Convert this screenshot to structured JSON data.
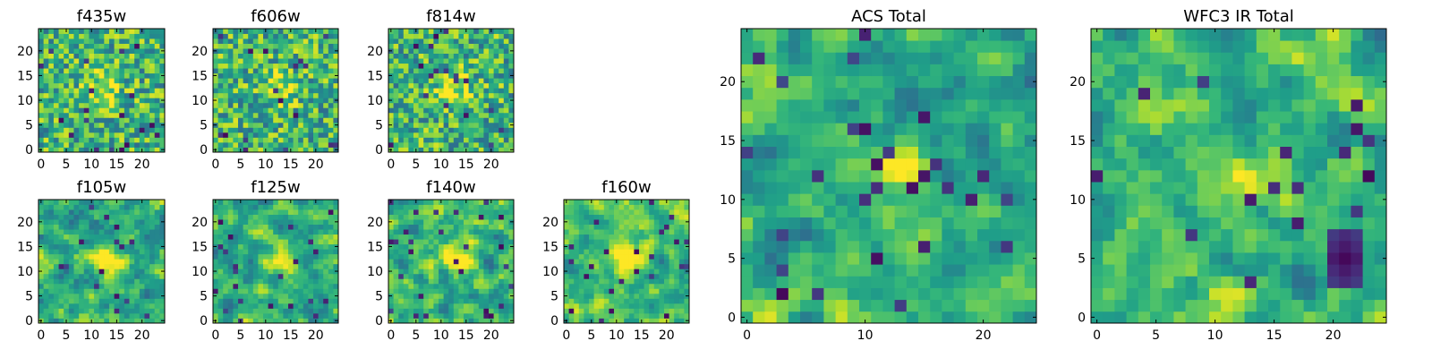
{
  "chart_data": [
    {
      "type": "heatmap",
      "title": "f435w",
      "xticks": [
        0,
        5,
        10,
        15,
        20
      ],
      "yticks": [
        0,
        5,
        10,
        15,
        20
      ],
      "xlim": [
        0,
        24
      ],
      "ylim": [
        0,
        24
      ],
      "grid_size": 25,
      "colormap": "viridis"
    },
    {
      "type": "heatmap",
      "title": "f606w",
      "xticks": [
        0,
        5,
        10,
        15,
        20
      ],
      "yticks": [
        0,
        5,
        10,
        15,
        20
      ],
      "xlim": [
        0,
        24
      ],
      "ylim": [
        0,
        24
      ],
      "grid_size": 25,
      "colormap": "viridis"
    },
    {
      "type": "heatmap",
      "title": "f814w",
      "xticks": [
        0,
        5,
        10,
        15,
        20
      ],
      "yticks": [
        0,
        5,
        10,
        15,
        20
      ],
      "xlim": [
        0,
        24
      ],
      "ylim": [
        0,
        24
      ],
      "grid_size": 25,
      "colormap": "viridis"
    },
    {
      "type": "heatmap",
      "title": "f105w",
      "xticks": [
        0,
        5,
        10,
        15,
        20
      ],
      "yticks": [
        0,
        5,
        10,
        15,
        20
      ],
      "xlim": [
        0,
        24
      ],
      "ylim": [
        0,
        24
      ],
      "grid_size": 25,
      "colormap": "viridis"
    },
    {
      "type": "heatmap",
      "title": "f125w",
      "xticks": [
        0,
        5,
        10,
        15,
        20
      ],
      "yticks": [
        0,
        5,
        10,
        15,
        20
      ],
      "xlim": [
        0,
        24
      ],
      "ylim": [
        0,
        24
      ],
      "grid_size": 25,
      "colormap": "viridis"
    },
    {
      "type": "heatmap",
      "title": "f140w",
      "xticks": [
        0,
        5,
        10,
        15,
        20
      ],
      "yticks": [
        0,
        5,
        10,
        15,
        20
      ],
      "xlim": [
        0,
        24
      ],
      "ylim": [
        0,
        24
      ],
      "grid_size": 25,
      "colormap": "viridis"
    },
    {
      "type": "heatmap",
      "title": "f160w",
      "xticks": [
        0,
        5,
        10,
        15,
        20
      ],
      "yticks": [
        0,
        5,
        10,
        15,
        20
      ],
      "xlim": [
        0,
        24
      ],
      "ylim": [
        0,
        24
      ],
      "grid_size": 25,
      "colormap": "viridis"
    },
    {
      "type": "heatmap",
      "title": "ACS Total",
      "xticks": [
        0,
        10,
        20
      ],
      "yticks": [
        0,
        5,
        10,
        15,
        20
      ],
      "xlim": [
        0,
        24
      ],
      "ylim": [
        0,
        24
      ],
      "grid_size": 25,
      "colormap": "viridis"
    },
    {
      "type": "heatmap",
      "title": "WFC3 IR Total",
      "xticks": [
        0,
        5,
        10,
        15,
        20
      ],
      "yticks": [
        0,
        5,
        10,
        15,
        20
      ],
      "xlim": [
        0,
        24
      ],
      "ylim": [
        0,
        24
      ],
      "grid_size": 25,
      "colormap": "viridis"
    }
  ]
}
